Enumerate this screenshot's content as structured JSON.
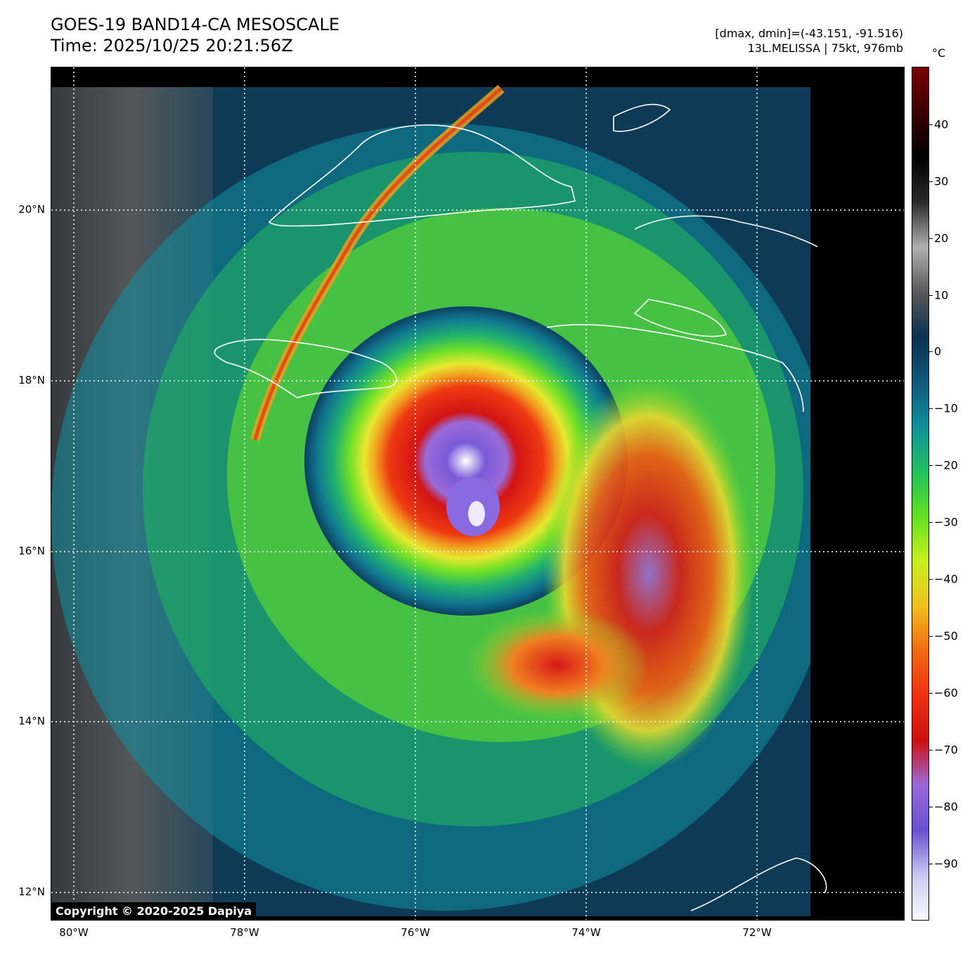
{
  "header": {
    "title_line1": "GOES-19 BAND14-CA MESOSCALE",
    "title_line2": "Time: 2025/10/25 20:21:56Z",
    "range_text": "[dmax, dmin]=(-43.151, -91.516)",
    "storm_text": "13L.MELISSA | 75kt, 976mb"
  },
  "map": {
    "copyright": "Copyright © 2020-2025 Dapiya",
    "lat_labels": [
      "20°N",
      "18°N",
      "16°N",
      "14°N",
      "12°N"
    ],
    "lon_labels": [
      "80°W",
      "78°W",
      "76°W",
      "74°W",
      "72°W"
    ],
    "storm_center": {
      "lat": 16.3,
      "lon": -75.3
    },
    "lat_range": [
      11.7,
      21.7
    ],
    "lon_range": [
      -80.3,
      -70.3
    ],
    "coastline_color": "#ffffff",
    "grid_color": "#ffffff"
  },
  "colorbar": {
    "unit": "°C",
    "ticks": [
      "40",
      "30",
      "20",
      "10",
      "0",
      "−10",
      "−20",
      "−30",
      "−40",
      "−50",
      "−60",
      "−70",
      "−80",
      "−90"
    ],
    "range": [
      -100,
      50
    ],
    "colors": [
      "#fafaff",
      "#c8c8f0",
      "#6a4fd0",
      "#9a6ad8",
      "#cc1010",
      "#ee3010",
      "#f06a10",
      "#f0c020",
      "#c8f020",
      "#60e020",
      "#20c060",
      "#10909a",
      "#105878",
      "#0a3050",
      "#5a5a5a",
      "#b0b0b0",
      "#2a2a2a",
      "#000000",
      "#3a0000",
      "#7a0000"
    ]
  }
}
